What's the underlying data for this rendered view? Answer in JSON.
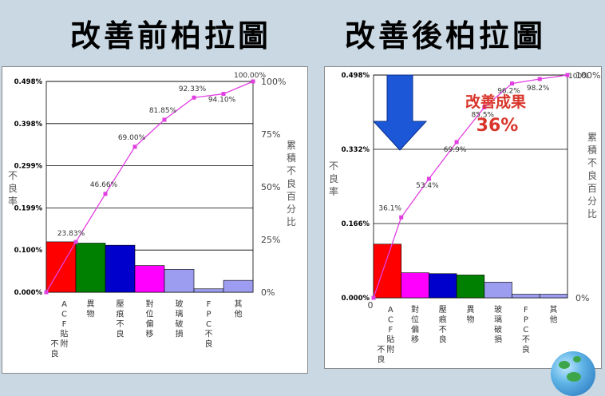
{
  "headings": {
    "before": "改善前柏拉圖",
    "after": "改善後柏拉圖"
  },
  "colors": {
    "background": "#c9d8e3",
    "cumulative_line": "#e23fe2",
    "arrow": "#1b57d6",
    "result_text": "#d9362b"
  },
  "chart_data": [
    {
      "type": "bar",
      "name": "before",
      "left_ylabel": "不良率",
      "right_ylabel": "累積不良百分比",
      "left_ticks": [
        "0.498%",
        "0.398%",
        "0.299%",
        "0.199%",
        "0.100%",
        "0.000%"
      ],
      "right_ticks": [
        "100%",
        "75%",
        "50%",
        "25%",
        "0%"
      ],
      "ylim": [
        0,
        0.498
      ],
      "categories": [
        "ACF貼附不良",
        "異物",
        "壓痕不良",
        "對位偏移",
        "玻璃破損",
        "FPC不良",
        "其他"
      ],
      "values": [
        0.119,
        0.116,
        0.111,
        0.063,
        0.054,
        0.008,
        0.028
      ],
      "bar_colors": [
        "#ff0000",
        "#008000",
        "#0000cc",
        "#ff00ff",
        "#9c9cf0",
        "#9c9cf0",
        "#9c9cf0"
      ],
      "cumulative_labels": [
        "23.83%",
        "46.66%",
        "69.00%",
        "81.85%",
        "92.33%",
        "94.10%",
        "100.00%"
      ],
      "cumulative": [
        23.83,
        46.66,
        69.0,
        81.85,
        92.33,
        94.1,
        100.0
      ]
    },
    {
      "type": "bar",
      "name": "after",
      "left_ylabel": "不良率",
      "right_ylabel": "累積不良百分比",
      "left_ticks": [
        "0.498%",
        "0.332%",
        "0.166%",
        "0.000%"
      ],
      "right_ticks": [
        "100%",
        "0%"
      ],
      "origin_tick": "0",
      "ylim": [
        0,
        0.498
      ],
      "categories": [
        "ACF貼附不良",
        "對位偏移",
        "壓痕不良",
        "異物",
        "玻璃破損",
        "FPC不良",
        "其他"
      ],
      "values": [
        0.12,
        0.056,
        0.054,
        0.051,
        0.035,
        0.008,
        0.008
      ],
      "bar_colors": [
        "#ff0000",
        "#ff00ff",
        "#0000cc",
        "#008000",
        "#9c9cf0",
        "#9c9cf0",
        "#9c9cf0"
      ],
      "cumulative_labels": [
        "36.1%",
        "53.4%",
        "69.9%",
        "85.5%",
        "96.2%",
        "98.2%",
        "100%"
      ],
      "cumulative": [
        36.1,
        53.4,
        69.9,
        85.5,
        96.2,
        98.2,
        100.0
      ],
      "annotation": {
        "title": "改善成果",
        "value": "36%"
      }
    }
  ]
}
